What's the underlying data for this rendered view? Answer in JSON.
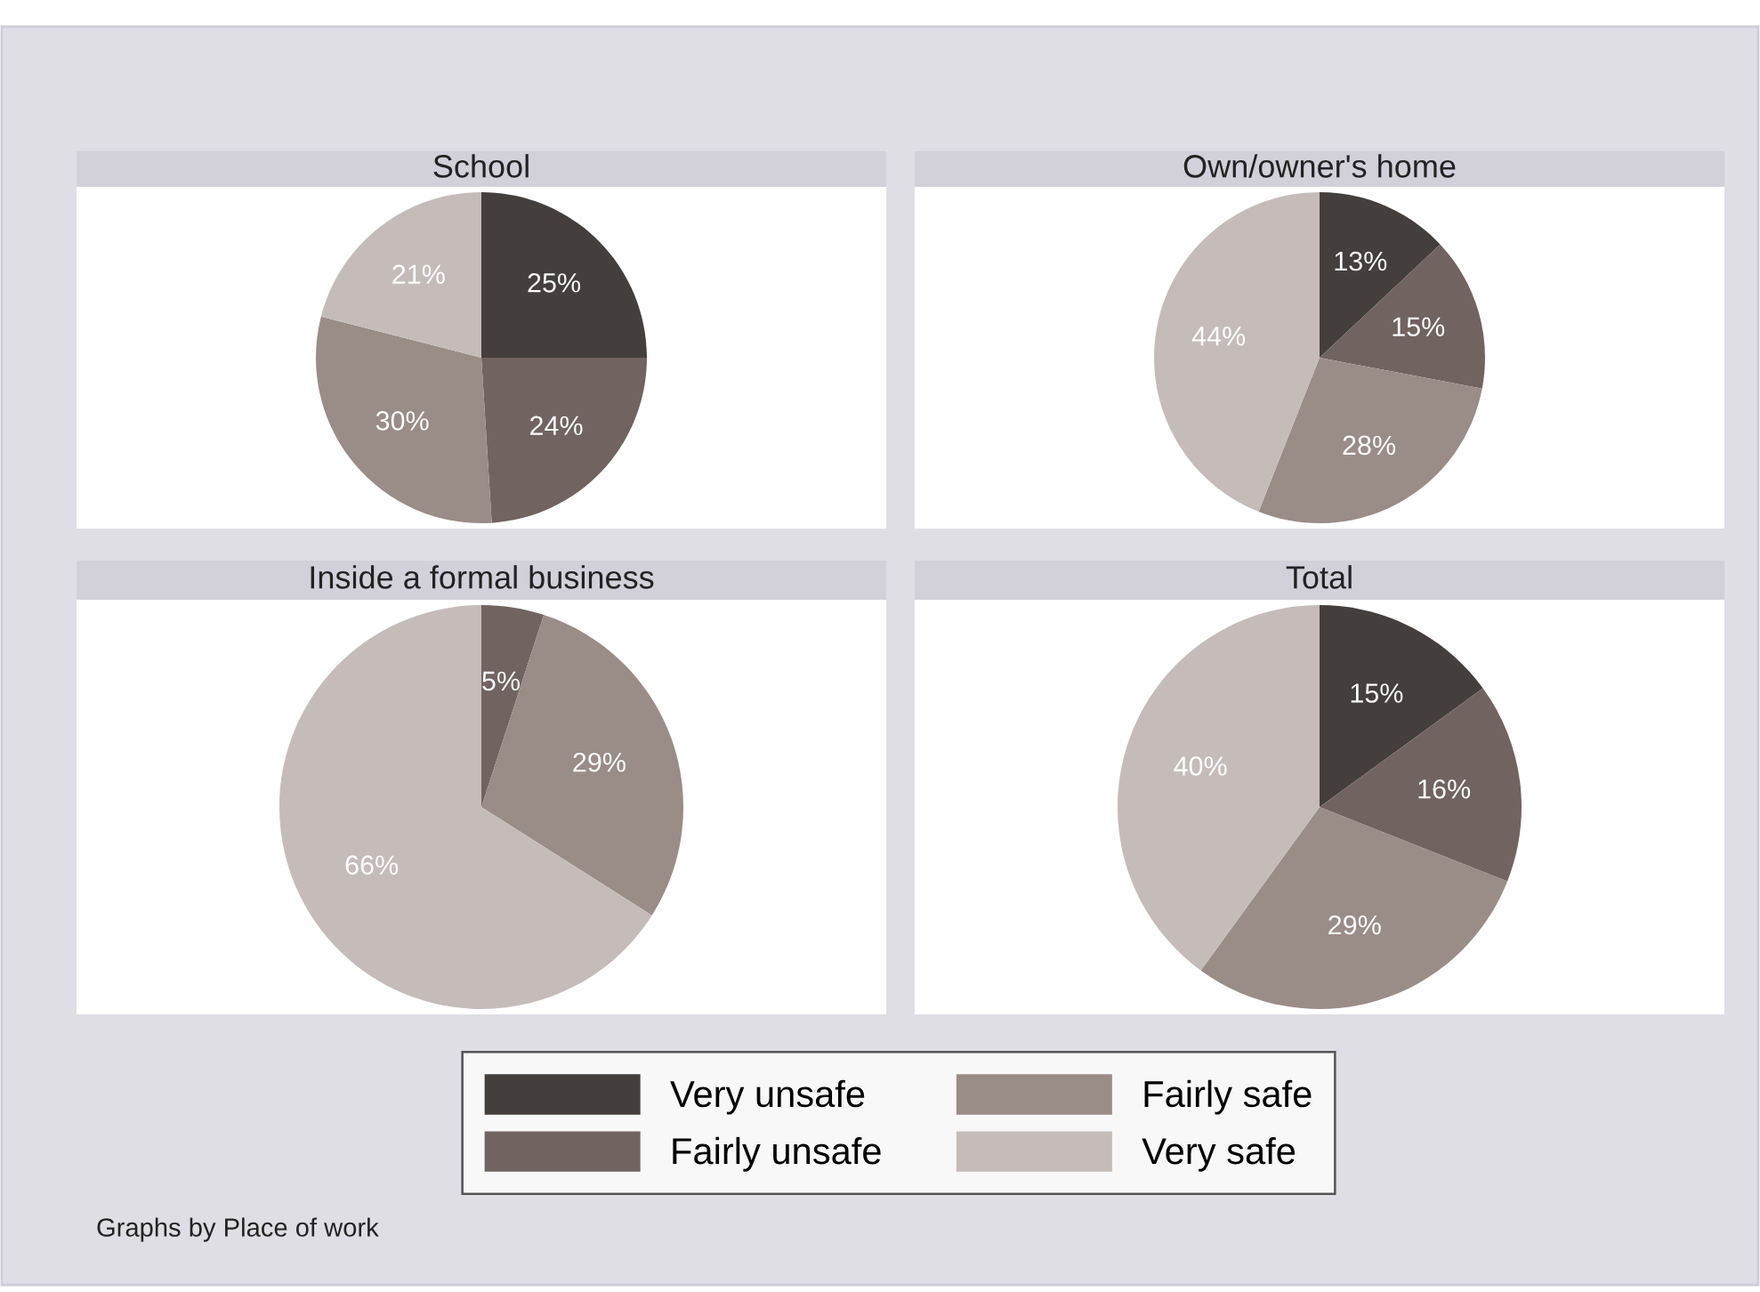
{
  "chart_data": [
    {
      "type": "pie",
      "title": "School",
      "categories": [
        "Very unsafe",
        "Fairly unsafe",
        "Fairly safe",
        "Very safe"
      ],
      "values": [
        25,
        24,
        30,
        21
      ],
      "colors": [
        "#443e3d",
        "#716360",
        "#9a8c87",
        "#c5bcb9"
      ],
      "value_labels": [
        "25%",
        "24%",
        "30%",
        "21%"
      ],
      "legend": "bottom"
    },
    {
      "type": "pie",
      "title": "Own/owner's home",
      "values": [
        13,
        15,
        28,
        44
      ],
      "colors": [
        "#443e3d",
        "#716360",
        "#9a8c87",
        "#c5bcb9"
      ],
      "value_labels": [
        "13%",
        "15%",
        "28%",
        "44%"
      ]
    },
    {
      "type": "pie",
      "title": "Inside a formal business",
      "values": [
        0,
        5,
        29,
        66
      ],
      "colors": [
        "#443e3d",
        "#716360",
        "#9a8c87",
        "#c5bcb9"
      ],
      "value_labels": [
        null,
        "5%",
        "29%",
        "66%"
      ]
    },
    {
      "type": "pie",
      "title": "Total",
      "values": [
        15,
        16,
        29,
        40
      ],
      "colors": [
        "#443e3d",
        "#716360",
        "#9a8c87",
        "#c5bcb9"
      ],
      "value_labels": [
        "15%",
        "16%",
        "29%",
        "40%"
      ],
      "annotations": [
        "Graphs by Place of work"
      ]
    }
  ]
}
